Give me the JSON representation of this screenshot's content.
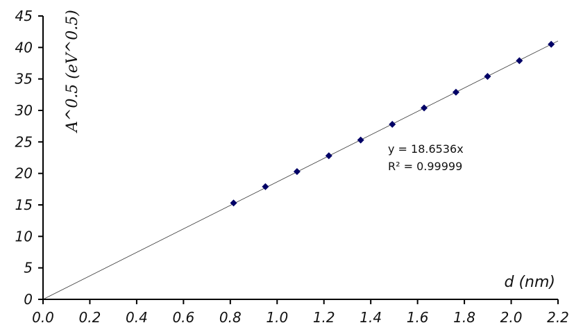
{
  "chart_data": {
    "type": "scatter",
    "title": "",
    "xlabel": "d (nm)",
    "ylabel": "A^0.5 (eV^0.5)",
    "xlim": [
      0,
      2.2
    ],
    "ylim": [
      0,
      45
    ],
    "xticks": [
      "0.0",
      "0.2",
      "0.4",
      "0.6",
      "0.8",
      "1.0",
      "1.2",
      "1.4",
      "1.6",
      "1.8",
      "2.0",
      "2.2"
    ],
    "yticks": [
      "0",
      "5",
      "10",
      "15",
      "20",
      "25",
      "30",
      "35",
      "40",
      "45"
    ],
    "grid": false,
    "legend": "none",
    "marker_color": "#000066",
    "points": {
      "x": [
        0.814,
        0.95,
        1.085,
        1.221,
        1.357,
        1.492,
        1.628,
        1.764,
        1.899,
        2.035,
        2.171
      ],
      "y": [
        15.3,
        17.9,
        20.3,
        22.8,
        25.3,
        27.8,
        30.4,
        32.9,
        35.4,
        37.9,
        40.5
      ]
    },
    "trendline": {
      "slope": 18.6536,
      "intercept": 0,
      "x_range": [
        0,
        2.2
      ]
    },
    "annotations": [
      "y = 18.6536x",
      "R² = 0.99999"
    ]
  }
}
